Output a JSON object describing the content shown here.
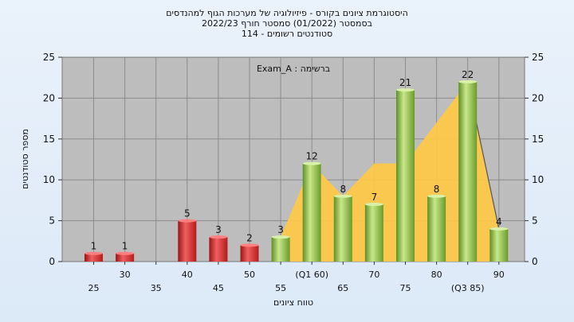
{
  "titles": {
    "line1": "היסטוגרמת ציונים בקורס - פיזיולוגיה של מערכות הגוף למהנדסים",
    "line2": "בסמסטר  (01/2022)  סמסטר חורף 2022/23",
    "line3": "סטודנטים רשומים - 114"
  },
  "colors": {
    "below_threshold": "#e03a3a",
    "above_threshold": "#8cc04b",
    "cumulative_area": "#ffc845",
    "plot_bg": "#bdbdbd"
  },
  "chart_data": {
    "type": "bar",
    "title": "היסטוגרמת ציונים בקורס - פיזיולוגיה של מערכות הגוף למהנדסים",
    "annotation": "Exam_A : ברשימה",
    "xlabel": "טווח ציונים",
    "ylabel": "מספר סטודנטים",
    "ylim": [
      0,
      25
    ],
    "yticks": [
      0,
      5,
      10,
      15,
      20,
      25
    ],
    "grid": true,
    "x_tick_labels": [
      "25",
      "30",
      "35",
      "40",
      "45",
      "50",
      "55",
      "(Q1 60)",
      "65",
      "70",
      "75",
      "80",
      "(Q3 85)",
      "90"
    ],
    "categories": [
      "25",
      "30",
      "35",
      "40",
      "45",
      "50",
      "55",
      "60",
      "65",
      "70",
      "75",
      "80",
      "85",
      "90"
    ],
    "values": [
      1,
      1,
      0,
      5,
      3,
      2,
      3,
      12,
      8,
      7,
      21,
      8,
      22,
      4
    ],
    "value_labels": [
      "1",
      "1",
      "",
      "5",
      "3",
      "2",
      "3",
      "12",
      "8",
      "7",
      "21",
      "8",
      "22",
      "4"
    ],
    "bar_colors": [
      "red",
      "red",
      "red",
      "red",
      "red",
      "red",
      "green",
      "green",
      "green",
      "green",
      "green",
      "green",
      "green",
      "green"
    ],
    "overlay_polygon_x": [
      "55",
      "60",
      "65",
      "70",
      "75",
      "85",
      "90"
    ],
    "overlay_polygon_y": [
      3,
      12,
      8,
      12,
      12,
      22,
      4
    ]
  }
}
